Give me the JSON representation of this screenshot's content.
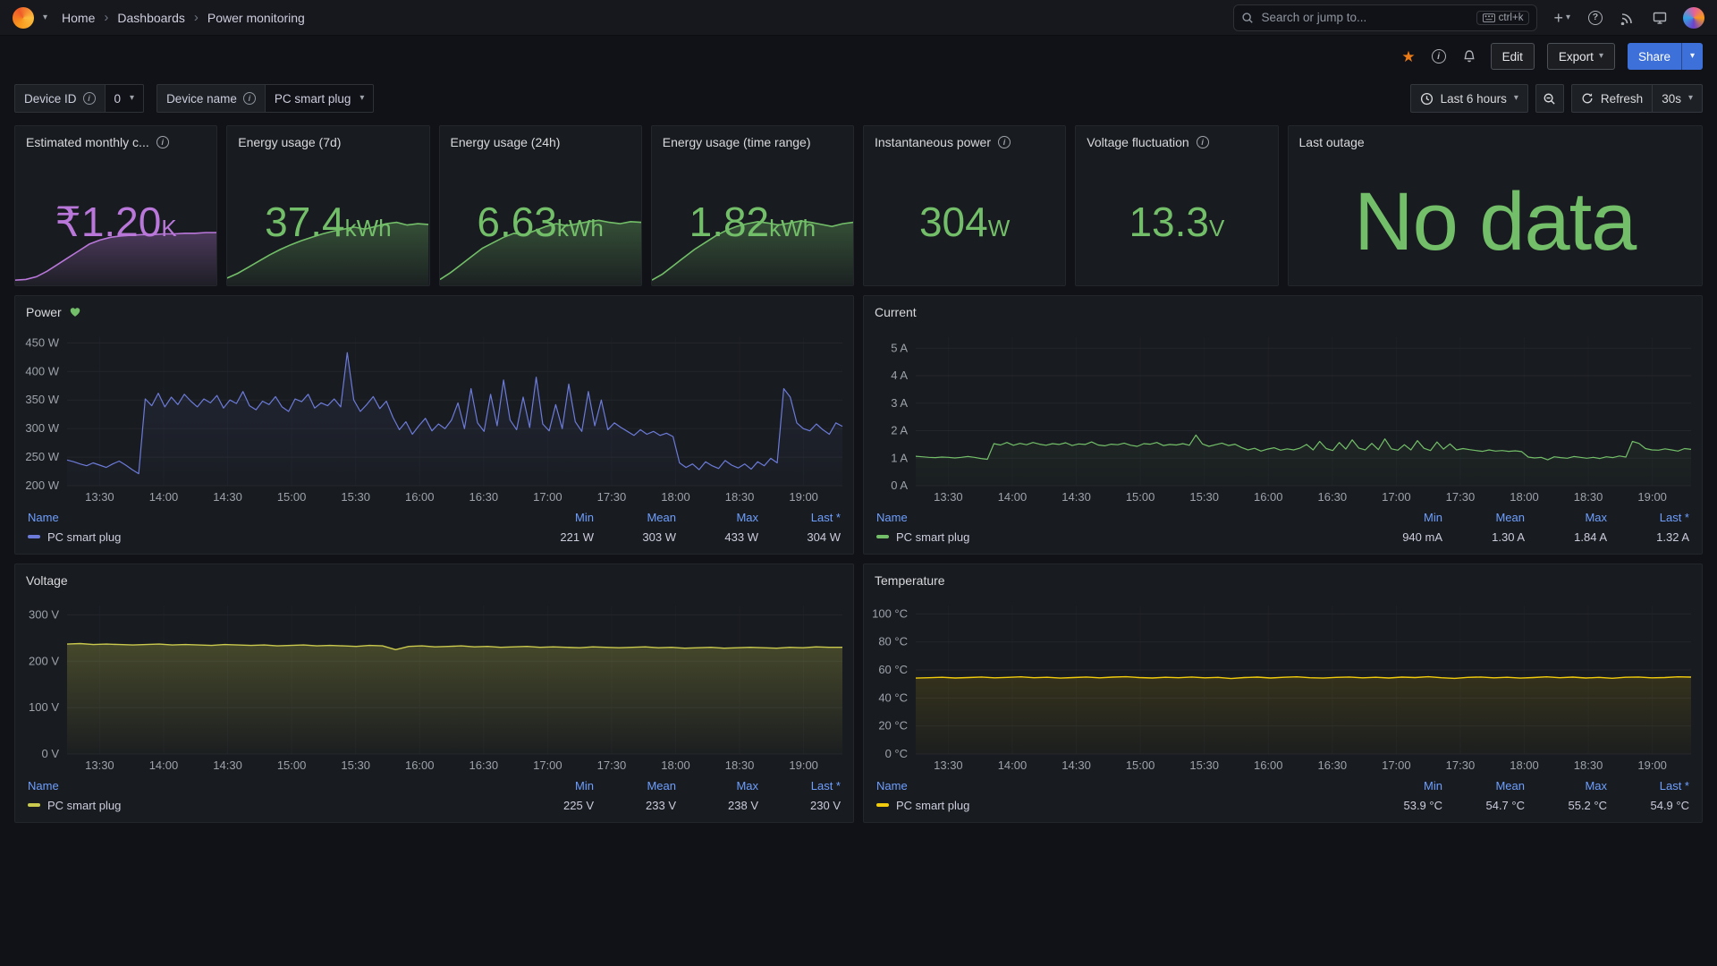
{
  "nav": {
    "breadcrumb": [
      {
        "label": "Home"
      },
      {
        "label": "Dashboards"
      },
      {
        "label": "Power monitoring"
      }
    ],
    "search": {
      "placeholder": "Search or jump to...",
      "shortcut": "ctrl+k"
    }
  },
  "toolbar": {
    "edit": "Edit",
    "export": "Export",
    "share": "Share",
    "share_color": "#3d71d9",
    "star_color": "#eb7b18"
  },
  "variables": [
    {
      "label": "Device ID",
      "value": "0"
    },
    {
      "label": "Device name",
      "value": "PC smart plug"
    }
  ],
  "timepicker": {
    "range": "Last 6 hours",
    "refresh": "Refresh",
    "interval": "30s"
  },
  "stats": [
    {
      "title": "Estimated monthly c...",
      "value": "₹1.20",
      "suffix": "K",
      "color": "#b877d9",
      "sparkline": [
        0.05,
        0.06,
        0.1,
        0.18,
        0.28,
        0.38,
        0.48,
        0.58,
        0.64,
        0.68,
        0.7,
        0.71,
        0.72,
        0.72,
        0.73,
        0.73,
        0.74,
        0.74,
        0.75,
        0.75
      ]
    },
    {
      "title": "Energy usage (7d)",
      "value": "37.4",
      "suffix": " kWh",
      "color": "#73bf69",
      "sparkline": [
        0.08,
        0.15,
        0.24,
        0.33,
        0.42,
        0.5,
        0.57,
        0.63,
        0.68,
        0.73,
        0.77,
        0.8,
        0.83,
        0.8,
        0.84,
        0.88,
        0.9,
        0.86,
        0.88,
        0.87
      ]
    },
    {
      "title": "Energy usage (24h)",
      "value": "6.63",
      "suffix": " kWh",
      "color": "#73bf69",
      "sparkline": [
        0.06,
        0.16,
        0.28,
        0.4,
        0.52,
        0.6,
        0.68,
        0.74,
        0.72,
        0.78,
        0.84,
        0.88,
        0.85,
        0.88,
        0.91,
        0.93,
        0.9,
        0.88,
        0.91,
        0.9
      ]
    },
    {
      "title": "Energy usage (time range)",
      "value": "1.82",
      "suffix": " kWh",
      "color": "#73bf69",
      "sparkline": [
        0.05,
        0.14,
        0.26,
        0.38,
        0.5,
        0.6,
        0.7,
        0.78,
        0.84,
        0.88,
        0.91,
        0.89,
        0.86,
        0.89,
        0.92,
        0.9,
        0.87,
        0.84,
        0.88,
        0.9
      ]
    },
    {
      "title": "Instantaneous power",
      "value": "304",
      "suffix": " W",
      "color": "#73bf69"
    },
    {
      "title": "Voltage fluctuation",
      "value": "13.3",
      "suffix": " V",
      "color": "#73bf69"
    },
    {
      "title": "Last outage",
      "value": "No data",
      "suffix": "",
      "color": "#73bf69"
    }
  ],
  "chart_data": [
    {
      "type": "line",
      "title": "Power",
      "ylabel": "Power",
      "unit": "W",
      "ylim": [
        200,
        460
      ],
      "y_ticks": [
        {
          "v": 200,
          "t": "200 W"
        },
        {
          "v": 250,
          "t": "250 W"
        },
        {
          "v": 300,
          "t": "300 W"
        },
        {
          "v": 350,
          "t": "350 W"
        },
        {
          "v": 400,
          "t": "400 W"
        },
        {
          "v": 450,
          "t": "450 W"
        }
      ],
      "x_ticks": [
        "13:30",
        "14:00",
        "14:30",
        "15:00",
        "15:30",
        "16:00",
        "16:30",
        "17:00",
        "17:30",
        "18:00",
        "18:30",
        "19:00"
      ],
      "series": [
        {
          "name": "PC smart plug",
          "color": "#6c7bd9",
          "values": [
            245,
            242,
            238,
            235,
            240,
            236,
            232,
            238,
            243,
            236,
            228,
            221,
            352,
            340,
            362,
            338,
            355,
            342,
            360,
            348,
            338,
            352,
            345,
            358,
            336,
            350,
            344,
            365,
            340,
            333,
            348,
            342,
            356,
            338,
            330,
            352,
            347,
            360,
            336,
            345,
            340,
            352,
            338,
            433,
            350,
            330,
            342,
            356,
            335,
            348,
            320,
            298,
            312,
            290,
            305,
            318,
            296,
            308,
            300,
            315,
            345,
            300,
            370,
            310,
            295,
            360,
            305,
            385,
            315,
            298,
            355,
            302,
            390,
            308,
            296,
            342,
            300,
            378,
            312,
            295,
            365,
            305,
            350,
            298,
            310,
            302,
            295,
            288,
            298,
            290,
            295,
            288,
            292,
            286,
            240,
            232,
            238,
            228,
            242,
            235,
            230,
            244,
            236,
            231,
            238,
            229,
            242,
            235,
            248,
            240,
            370,
            355,
            310,
            300,
            296,
            308,
            298,
            290,
            310,
            304
          ]
        }
      ],
      "legend": {
        "headers": [
          "Name",
          "Min",
          "Mean",
          "Max",
          "Last *"
        ],
        "rows": [
          {
            "name": "PC smart plug",
            "min": "221 W",
            "mean": "303 W",
            "max": "433 W",
            "last": "304 W"
          }
        ]
      }
    },
    {
      "type": "line",
      "title": "Current",
      "ylabel": "Current",
      "unit": "A",
      "ylim": [
        0,
        5.4
      ],
      "y_ticks": [
        {
          "v": 0,
          "t": "0 A"
        },
        {
          "v": 1,
          "t": "1 A"
        },
        {
          "v": 2,
          "t": "2 A"
        },
        {
          "v": 3,
          "t": "3 A"
        },
        {
          "v": 4,
          "t": "4 A"
        },
        {
          "v": 5,
          "t": "5 A"
        }
      ],
      "x_ticks": [
        "13:30",
        "14:00",
        "14:30",
        "15:00",
        "15:30",
        "16:00",
        "16:30",
        "17:00",
        "17:30",
        "18:00",
        "18:30",
        "19:00"
      ],
      "series": [
        {
          "name": "PC smart plug",
          "color": "#73bf69",
          "values": [
            1.07,
            1.05,
            1.03,
            1.02,
            1.04,
            1.03,
            1.01,
            1.03,
            1.06,
            1.03,
            0.99,
            0.96,
            1.53,
            1.48,
            1.57,
            1.47,
            1.54,
            1.49,
            1.57,
            1.51,
            1.47,
            1.53,
            1.5,
            1.56,
            1.46,
            1.52,
            1.5,
            1.59,
            1.48,
            1.45,
            1.51,
            1.49,
            1.55,
            1.47,
            1.43,
            1.53,
            1.51,
            1.57,
            1.46,
            1.5,
            1.48,
            1.53,
            1.47,
            1.84,
            1.52,
            1.43,
            1.49,
            1.55,
            1.46,
            1.51,
            1.39,
            1.3,
            1.36,
            1.26,
            1.33,
            1.38,
            1.29,
            1.34,
            1.3,
            1.37,
            1.5,
            1.3,
            1.61,
            1.35,
            1.28,
            1.57,
            1.33,
            1.67,
            1.37,
            1.3,
            1.54,
            1.31,
            1.7,
            1.34,
            1.29,
            1.49,
            1.3,
            1.64,
            1.36,
            1.28,
            1.59,
            1.33,
            1.52,
            1.3,
            1.35,
            1.31,
            1.28,
            1.25,
            1.3,
            1.26,
            1.28,
            1.25,
            1.27,
            1.24,
            1.04,
            1.01,
            1.03,
            0.94,
            1.05,
            1.02,
            1.0,
            1.06,
            1.03,
            1.0,
            1.03,
            0.99,
            1.05,
            1.02,
            1.08,
            1.04,
            1.61,
            1.54,
            1.35,
            1.3,
            1.29,
            1.34,
            1.3,
            1.26,
            1.35,
            1.32
          ]
        }
      ],
      "legend": {
        "headers": [
          "Name",
          "Min",
          "Mean",
          "Max",
          "Last *"
        ],
        "rows": [
          {
            "name": "PC smart plug",
            "min": "940 mA",
            "mean": "1.30 A",
            "max": "1.84 A",
            "last": "1.32 A"
          }
        ]
      }
    },
    {
      "type": "area",
      "title": "Voltage",
      "ylabel": "Voltage",
      "unit": "V",
      "ylim": [
        0,
        320
      ],
      "y_ticks": [
        {
          "v": 0,
          "t": "0 V"
        },
        {
          "v": 100,
          "t": "100 V"
        },
        {
          "v": 200,
          "t": "200 V"
        },
        {
          "v": 300,
          "t": "300 V"
        }
      ],
      "x_ticks": [
        "13:30",
        "14:00",
        "14:30",
        "15:00",
        "15:30",
        "16:00",
        "16:30",
        "17:00",
        "17:30",
        "18:00",
        "18:30",
        "19:00"
      ],
      "series": [
        {
          "name": "PC smart plug",
          "color": "#c9c94d",
          "values": [
            237,
            238,
            236,
            237,
            236,
            235,
            236,
            237,
            235,
            236,
            235,
            234,
            236,
            235,
            234,
            235,
            233,
            234,
            235,
            233,
            234,
            233,
            232,
            234,
            233,
            225,
            232,
            233,
            231,
            232,
            233,
            231,
            232,
            230,
            231,
            232,
            230,
            231,
            230,
            229,
            231,
            230,
            229,
            230,
            231,
            229,
            230,
            228,
            229,
            230,
            228,
            229,
            230,
            229,
            228,
            230,
            229,
            231,
            230,
            230
          ]
        }
      ],
      "legend": {
        "headers": [
          "Name",
          "Min",
          "Mean",
          "Max",
          "Last *"
        ],
        "rows": [
          {
            "name": "PC smart plug",
            "min": "225 V",
            "mean": "233 V",
            "max": "238 V",
            "last": "230 V"
          }
        ]
      }
    },
    {
      "type": "line",
      "title": "Temperature",
      "ylabel": "Temperature",
      "unit": "°C",
      "ylim": [
        0,
        106
      ],
      "y_ticks": [
        {
          "v": 0,
          "t": "0 °C"
        },
        {
          "v": 20,
          "t": "20 °C"
        },
        {
          "v": 40,
          "t": "40 °C"
        },
        {
          "v": 60,
          "t": "60 °C"
        },
        {
          "v": 80,
          "t": "80 °C"
        },
        {
          "v": 100,
          "t": "100 °C"
        }
      ],
      "x_ticks": [
        "13:30",
        "14:00",
        "14:30",
        "15:00",
        "15:30",
        "16:00",
        "16:30",
        "17:00",
        "17:30",
        "18:00",
        "18:30",
        "19:00"
      ],
      "series": [
        {
          "name": "PC smart plug",
          "color": "#f2cc0c",
          "values": [
            54.2,
            54.5,
            54.8,
            54.3,
            54.6,
            55.0,
            54.4,
            54.7,
            55.1,
            54.5,
            54.8,
            54.2,
            54.6,
            55.0,
            54.4,
            54.9,
            55.2,
            54.6,
            54.3,
            54.8,
            54.5,
            55.0,
            54.4,
            54.7,
            53.9,
            54.6,
            54.9,
            54.3,
            54.8,
            55.1,
            54.5,
            54.2,
            54.7,
            55.0,
            54.4,
            54.8,
            54.3,
            54.9,
            54.6,
            55.2,
            54.5,
            54.0,
            54.7,
            55.0,
            54.4,
            54.8,
            54.2,
            54.6,
            55.1,
            54.5,
            54.9,
            54.3,
            54.7,
            54.1,
            54.8,
            55.0,
            54.4,
            54.6,
            55.1,
            54.9
          ]
        }
      ],
      "legend": {
        "headers": [
          "Name",
          "Min",
          "Mean",
          "Max",
          "Last *"
        ],
        "rows": [
          {
            "name": "PC smart plug",
            "min": "53.9 °C",
            "mean": "54.7 °C",
            "max": "55.2 °C",
            "last": "54.9 °C"
          }
        ]
      }
    }
  ]
}
